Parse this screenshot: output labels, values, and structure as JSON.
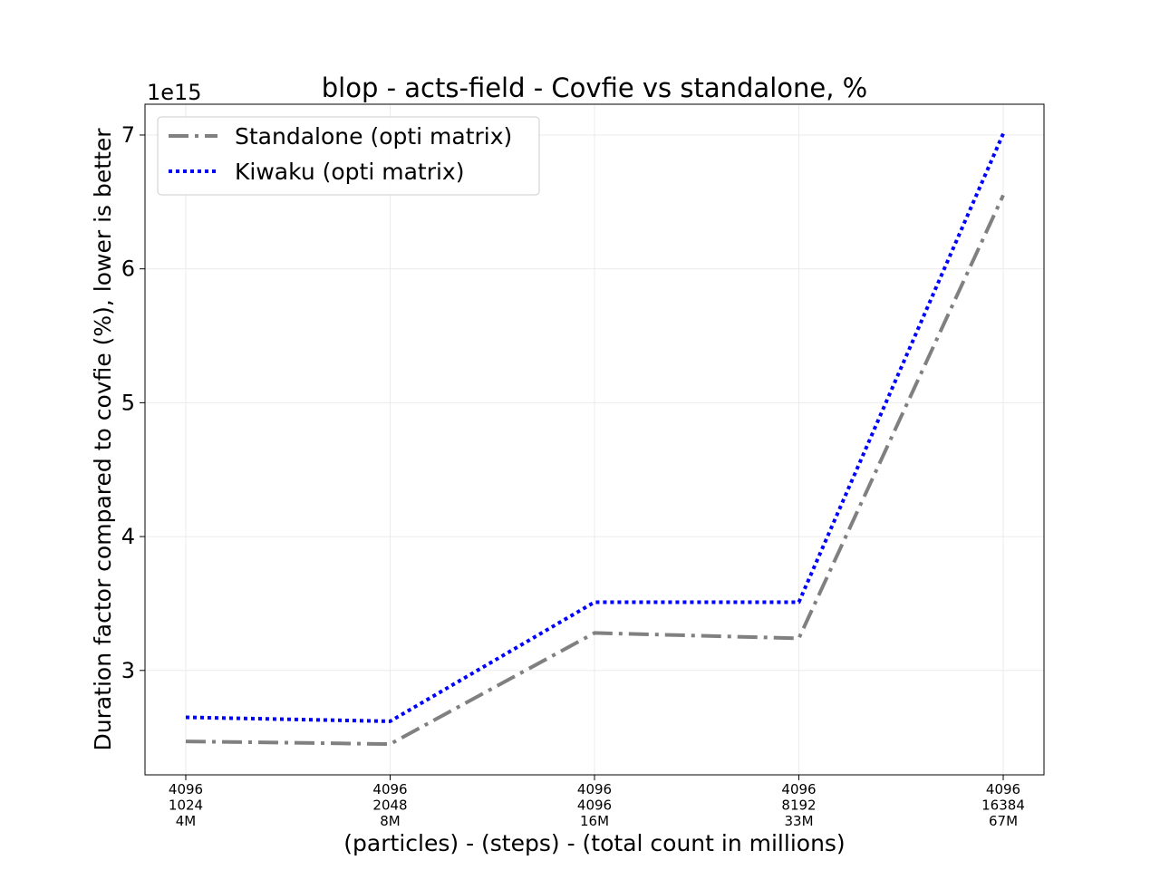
{
  "chart_data": {
    "type": "line",
    "title": "blop - acts-field - Covfie vs standalone, %",
    "xlabel": "(particles) - (steps) - (total count in millions)",
    "ylabel": "Duration factor compared to covfie (%), lower is better",
    "y_offset_label": "1e15",
    "categories": [
      [
        "4096",
        "1024",
        "4M"
      ],
      [
        "4096",
        "2048",
        "8M"
      ],
      [
        "4096",
        "4096",
        "16M"
      ],
      [
        "4096",
        "8192",
        "33M"
      ],
      [
        "4096",
        "16384",
        "67M"
      ]
    ],
    "y_ticks": [
      3,
      4,
      5,
      6,
      7
    ],
    "y_tick_labels": [
      "3",
      "4",
      "5",
      "6",
      "7"
    ],
    "ylim": [
      2.22,
      7.23
    ],
    "grid": true,
    "legend_position": "top-left",
    "series": [
      {
        "name": "Standalone (opti matrix)",
        "color": "#808080",
        "style": "dashdot",
        "values": [
          2.47,
          2.45,
          3.28,
          3.24,
          6.55
        ]
      },
      {
        "name": "Kiwaku (opti matrix)",
        "color": "#0000ff",
        "style": "dotted",
        "values": [
          2.65,
          2.62,
          3.51,
          3.51,
          7.01
        ]
      }
    ]
  }
}
